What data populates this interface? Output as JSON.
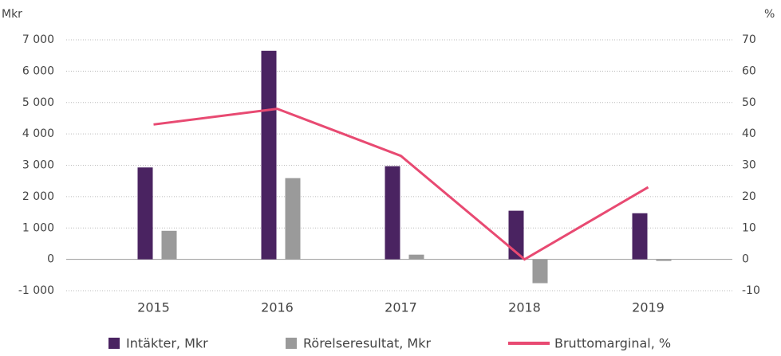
{
  "chart_data": {
    "type": "bar-line",
    "y_label": "Mkr",
    "y2_label": "%",
    "categories": [
      "2015",
      "2016",
      "2017",
      "2018",
      "2019"
    ],
    "series": [
      {
        "name": "Intäkter, Mkr",
        "color": "#4a2361",
        "type": "bar",
        "values": [
          2930,
          6650,
          2970,
          1550,
          1470
        ]
      },
      {
        "name": "Rörelseresultat, Mkr",
        "color": "#9a9a9a",
        "type": "bar",
        "values": [
          910,
          2590,
          150,
          -760,
          -50
        ]
      },
      {
        "name": "Bruttomarginal, %",
        "color": "#e84a72",
        "type": "line",
        "axis": "y2",
        "values": [
          43,
          48,
          33,
          0,
          23
        ]
      }
    ],
    "ylim": [
      -1000,
      7000
    ],
    "yticks": [
      {
        "value": -1000,
        "label": "-1 000"
      },
      0,
      {
        "value": 1000,
        "label": "1 000"
      },
      {
        "value": 2000,
        "label": "2 000"
      },
      {
        "value": 3000,
        "label": "3 000"
      },
      {
        "value": 4000,
        "label": "4 000"
      },
      {
        "value": 5000,
        "label": "5 000"
      },
      {
        "value": 6000,
        "label": "6 000"
      },
      {
        "value": 7000,
        "label": "7 000"
      }
    ],
    "y2lim": [
      -10,
      70
    ],
    "y2ticks": [
      -10,
      0,
      10,
      20,
      30,
      40,
      50,
      60,
      70
    ],
    "grid": true,
    "legend": "bottom"
  }
}
